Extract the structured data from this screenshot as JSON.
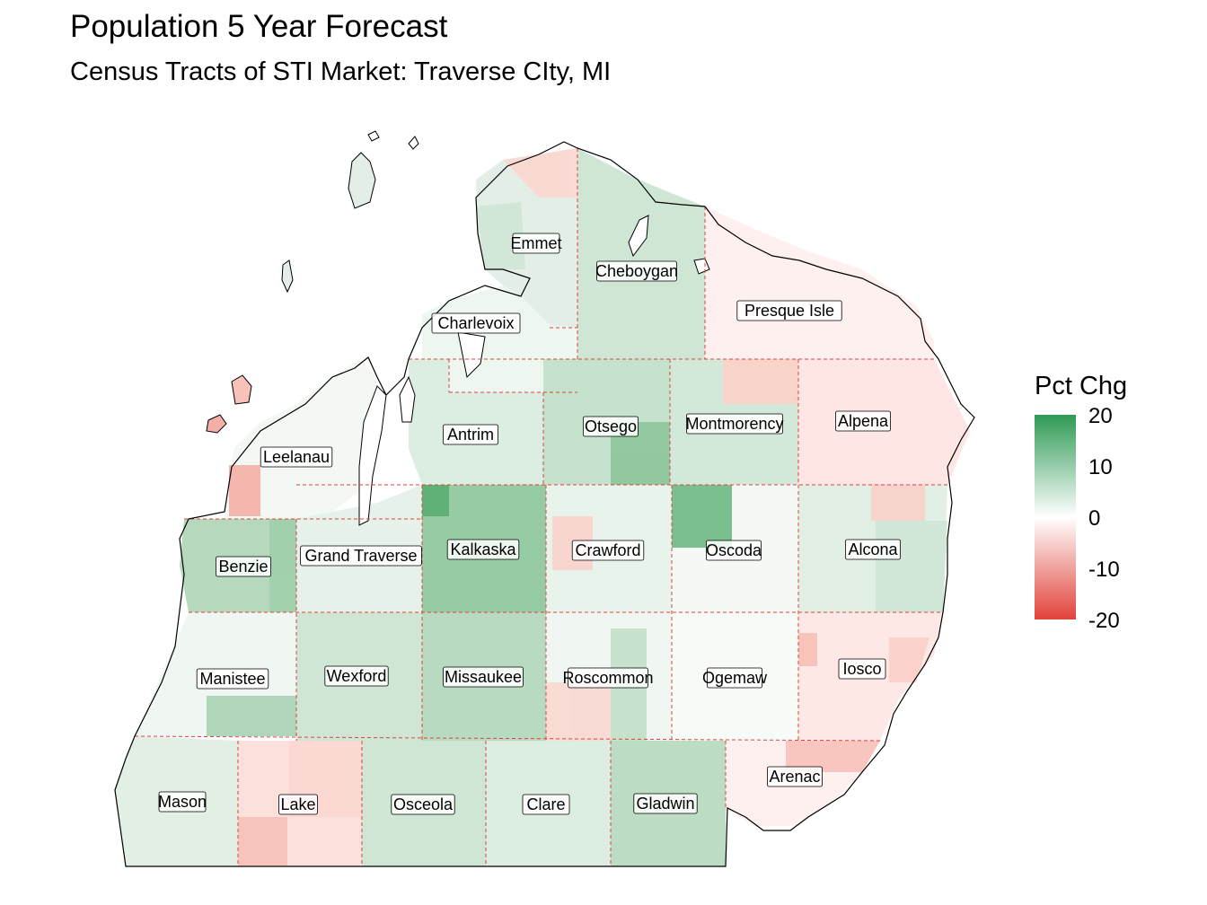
{
  "title": "Population 5 Year Forecast",
  "subtitle": "Census Tracts of STI Market: Traverse CIty, MI",
  "legend": {
    "title": "Pct Chg",
    "ticks": [
      "20",
      "10",
      "0",
      "-10",
      "-20"
    ],
    "colors": {
      "high": "#2e9a55",
      "mid": "#ffffff",
      "low": "#e0433a"
    }
  },
  "counties": [
    {
      "name": "Emmet",
      "color": "#e3efe6"
    },
    {
      "name": "Cheboygan",
      "color": "#cfe6d5"
    },
    {
      "name": "Charlevoix",
      "color": "#eef6f0"
    },
    {
      "name": "Presque Isle",
      "color": "#fdf0ee"
    },
    {
      "name": "Antrim",
      "color": "#dcede1"
    },
    {
      "name": "Otsego",
      "color": "#c5e2cc"
    },
    {
      "name": "Montmorency",
      "color": "#d2e8d8"
    },
    {
      "name": "Alpena",
      "color": "#fde6e3"
    },
    {
      "name": "Leelanau",
      "color": "#f3f8f4"
    },
    {
      "name": "Benzie",
      "color": "#b6d9be"
    },
    {
      "name": "Grand Traverse",
      "color": "#e6f1e9"
    },
    {
      "name": "Kalkaska",
      "color": "#96cba3"
    },
    {
      "name": "Crawford",
      "color": "#e8f3eb"
    },
    {
      "name": "Oscoda",
      "color": "#f4f9f5"
    },
    {
      "name": "Alcona",
      "color": "#e1efe5"
    },
    {
      "name": "Manistee",
      "color": "#f0f7f2"
    },
    {
      "name": "Wexford",
      "color": "#cfe6d5"
    },
    {
      "name": "Missaukee",
      "color": "#b8dac0"
    },
    {
      "name": "Roscommon",
      "color": "#f0f7f2"
    },
    {
      "name": "Ogemaw",
      "color": "#f7fbf8"
    },
    {
      "name": "Iosco",
      "color": "#fde8e5"
    },
    {
      "name": "Mason",
      "color": "#e1efe5"
    },
    {
      "name": "Lake",
      "color": "#fbe0dc"
    },
    {
      "name": "Osceola",
      "color": "#cfe6d5"
    },
    {
      "name": "Clare",
      "color": "#dcede1"
    },
    {
      "name": "Gladwin",
      "color": "#bcdcc4"
    },
    {
      "name": "Arenac",
      "color": "#fdf0ee"
    }
  ]
}
